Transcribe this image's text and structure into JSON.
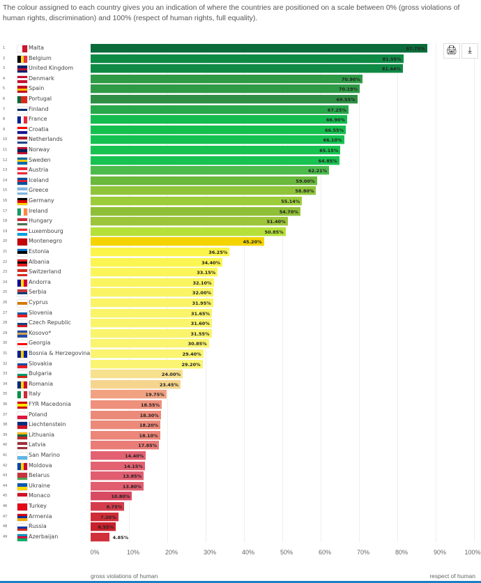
{
  "intro": "The colour assigned to each country gives you an indication of where the countries are positioned on a scale between 0% (gross violations of human rights, discrimination) and 100% (respect of human rights, full equality).",
  "toolbar": {
    "print_icon": "print-icon",
    "download_icon": "download-icon"
  },
  "chart_data": {
    "type": "bar",
    "orientation": "horizontal",
    "xlim": [
      0,
      100
    ],
    "xticks": [
      "0%",
      "10%",
      "20%",
      "30%",
      "40%",
      "50%",
      "60%",
      "70%",
      "80%",
      "90%",
      "100%"
    ],
    "xlabel_left": "gross violations of human",
    "xlabel_right": "respect of human",
    "grid": true,
    "rows": [
      {
        "rank": "1",
        "name": "Malta",
        "value": 87.75,
        "label": "87.75%",
        "color": "#0b6b3a",
        "flag": [
          "v",
          "#ffffff",
          "#cf142b"
        ]
      },
      {
        "rank": "2",
        "name": "Belgium",
        "value": 81.55,
        "label": "81.55%",
        "color": "#0f8a45",
        "flag": [
          "v",
          "#000000",
          "#fdda24",
          "#ef3340"
        ]
      },
      {
        "rank": "3",
        "name": "United Kingdom",
        "value": 81.44,
        "label": "81.44%",
        "color": "#0f8a45",
        "flag": [
          "h",
          "#012169",
          "#c8102e",
          "#012169"
        ]
      },
      {
        "rank": "4",
        "name": "Denmark",
        "value": 70.9,
        "label": "70.90%",
        "color": "#2e9a45",
        "flag": [
          "h",
          "#c8102e",
          "#ffffff",
          "#c8102e"
        ]
      },
      {
        "rank": "5",
        "name": "Spain",
        "value": 70.19,
        "label": "70.19%",
        "color": "#2e9a45",
        "flag": [
          "h",
          "#c60b1e",
          "#ffc400",
          "#c60b1e"
        ]
      },
      {
        "rank": "6",
        "name": "Portugal",
        "value": 69.55,
        "label": "69.55%",
        "color": "#2e8f44",
        "flag": [
          "v",
          "#046a38",
          "#da291c",
          "#da291c"
        ]
      },
      {
        "rank": "7",
        "name": "Finland",
        "value": 67.25,
        "label": "67.25%",
        "color": "#27a84a",
        "flag": [
          "h",
          "#ffffff",
          "#002f6c",
          "#ffffff"
        ]
      },
      {
        "rank": "8",
        "name": "France",
        "value": 66.9,
        "label": "66.90%",
        "color": "#14bb4e",
        "flag": [
          "v",
          "#002395",
          "#ffffff",
          "#ed2939"
        ]
      },
      {
        "rank": "9",
        "name": "Croatia",
        "value": 66.55,
        "label": "66.55%",
        "color": "#14bf4e",
        "flag": [
          "h",
          "#ff0000",
          "#ffffff",
          "#171796"
        ]
      },
      {
        "rank": "10",
        "name": "Netherlands",
        "value": 66.1,
        "label": "66.10%",
        "color": "#14c150",
        "flag": [
          "h",
          "#ae1c28",
          "#ffffff",
          "#21468b"
        ]
      },
      {
        "rank": "11",
        "name": "Norway",
        "value": 65.15,
        "label": "65.15%",
        "color": "#17c250",
        "flag": [
          "h",
          "#ba0c2f",
          "#00205b",
          "#ba0c2f"
        ]
      },
      {
        "rank": "12",
        "name": "Sweden",
        "value": 64.85,
        "label": "64.85%",
        "color": "#17c250",
        "flag": [
          "h",
          "#006aa7",
          "#fecc02",
          "#006aa7"
        ]
      },
      {
        "rank": "13",
        "name": "Austria",
        "value": 62.21,
        "label": "62.21%",
        "color": "#4cbb4c",
        "flag": [
          "h",
          "#ed2939",
          "#ffffff",
          "#ed2939"
        ]
      },
      {
        "rank": "14",
        "name": "Iceland",
        "value": 59.0,
        "label": "59.00%",
        "color": "#6ab83c",
        "flag": [
          "h",
          "#02529c",
          "#dc1e35",
          "#02529c"
        ]
      },
      {
        "rank": "15",
        "name": "Greece",
        "value": 58.8,
        "label": "58.80%",
        "color": "#8fc43a",
        "flag": [
          "h",
          "#7fb6e0",
          "#ffffff",
          "#7fb6e0"
        ]
      },
      {
        "rank": "16",
        "name": "Germany",
        "value": 55.14,
        "label": "55.14%",
        "color": "#9ccc3a",
        "flag": [
          "h",
          "#000000",
          "#dd0000",
          "#ffce00"
        ]
      },
      {
        "rank": "17",
        "name": "Ireland",
        "value": 54.7,
        "label": "54.70%",
        "color": "#8fbf36",
        "flag": [
          "v",
          "#169b62",
          "#ffffff",
          "#ff883e"
        ]
      },
      {
        "rank": "18",
        "name": "Hungary",
        "value": 51.4,
        "label": "51.40%",
        "color": "#9cc53a",
        "flag": [
          "h",
          "#ce2939",
          "#ffffff",
          "#477050"
        ]
      },
      {
        "rank": "19",
        "name": "Luxembourg",
        "value": 50.85,
        "label": "50.85%",
        "color": "#b5e03a",
        "flag": [
          "h",
          "#ed2939",
          "#ffffff",
          "#00a1de"
        ]
      },
      {
        "rank": "20",
        "name": "Montenegro",
        "value": 45.2,
        "label": "45.20%",
        "color": "#f3d400",
        "flag": [
          "h",
          "#c40308",
          "#c40308",
          "#c40308"
        ]
      },
      {
        "rank": "21",
        "name": "Estonia",
        "value": 36.25,
        "label": "36.25%",
        "color": "#fbf54a",
        "flag": [
          "h",
          "#0072ce",
          "#000000",
          "#ffffff"
        ]
      },
      {
        "rank": "22",
        "name": "Albania",
        "value": 34.4,
        "label": "34.40%",
        "color": "#fbf552",
        "flag": [
          "h",
          "#e41e20",
          "#000000",
          "#e41e20"
        ]
      },
      {
        "rank": "23",
        "name": "Switzerland",
        "value": 33.15,
        "label": "33.15%",
        "color": "#fbf55a",
        "flag": [
          "h",
          "#d52b1e",
          "#ffffff",
          "#d52b1e"
        ]
      },
      {
        "rank": "24",
        "name": "Andorra",
        "value": 32.1,
        "label": "32.10%",
        "color": "#faf460",
        "flag": [
          "v",
          "#10069f",
          "#fedf00",
          "#d50032"
        ]
      },
      {
        "rank": "25",
        "name": "Serbia",
        "value": 32.0,
        "label": "32.00%",
        "color": "#faf464",
        "flag": [
          "h",
          "#c6363c",
          "#0c4076",
          "#ffffff"
        ]
      },
      {
        "rank": "26",
        "name": "Cyprus",
        "value": 31.95,
        "label": "31.95%",
        "color": "#faf466",
        "flag": [
          "h",
          "#ffffff",
          "#d57800",
          "#ffffff"
        ]
      },
      {
        "rank": "27",
        "name": "Slovenia",
        "value": 31.65,
        "label": "31.65%",
        "color": "#faf468",
        "flag": [
          "h",
          "#ffffff",
          "#005da4",
          "#ed1c24"
        ]
      },
      {
        "rank": "28",
        "name": "Czech Republic",
        "value": 31.6,
        "label": "31.60%",
        "color": "#faf46a",
        "flag": [
          "h",
          "#ffffff",
          "#11457e",
          "#d7141a"
        ]
      },
      {
        "rank": "29",
        "name": "Kosovo*",
        "value": 31.55,
        "label": "31.55%",
        "color": "#faf46c",
        "flag": [
          "h",
          "#244aa5",
          "#d0a650",
          "#244aa5"
        ]
      },
      {
        "rank": "30",
        "name": "Georgia",
        "value": 30.85,
        "label": "30.85%",
        "color": "#faf46e",
        "flag": [
          "h",
          "#ffffff",
          "#ff0000",
          "#ffffff"
        ]
      },
      {
        "rank": "31",
        "name": "Bosnia & Herzegovina",
        "value": 29.4,
        "label": "29.40%",
        "color": "#faf470",
        "flag": [
          "v",
          "#002395",
          "#fecb00",
          "#002395"
        ]
      },
      {
        "rank": "32",
        "name": "Slovakia",
        "value": 29.2,
        "label": "29.20%",
        "color": "#faf472",
        "flag": [
          "h",
          "#ffffff",
          "#0b4ea2",
          "#ee1c25"
        ]
      },
      {
        "rank": "33",
        "name": "Bulgaria",
        "value": 24.0,
        "label": "24.00%",
        "color": "#f7e08e",
        "flag": [
          "h",
          "#ffffff",
          "#00966e",
          "#d62612"
        ]
      },
      {
        "rank": "34",
        "name": "Romania",
        "value": 23.45,
        "label": "23.45%",
        "color": "#f5d58e",
        "flag": [
          "v",
          "#002b7f",
          "#fcd116",
          "#ce1126"
        ]
      },
      {
        "rank": "35",
        "name": "Italy",
        "value": 19.75,
        "label": "19.75%",
        "color": "#f0a282",
        "flag": [
          "v",
          "#009246",
          "#ffffff",
          "#ce2b37"
        ]
      },
      {
        "rank": "36",
        "name": "FYR Macedonia",
        "value": 18.55,
        "label": "18.55%",
        "color": "#ee907c",
        "flag": [
          "h",
          "#d20000",
          "#ffe600",
          "#d20000"
        ]
      },
      {
        "rank": "37",
        "name": "Poland",
        "value": 18.3,
        "label": "18.30%",
        "color": "#ec8a7a",
        "flag": [
          "h",
          "#ffffff",
          "#dc143c"
        ]
      },
      {
        "rank": "38",
        "name": "Liechtenstein",
        "value": 18.2,
        "label": "18.20%",
        "color": "#ec8a7a",
        "flag": [
          "h",
          "#002b7f",
          "#ce1126"
        ]
      },
      {
        "rank": "39",
        "name": "Lithuania",
        "value": 18.1,
        "label": "18.10%",
        "color": "#eb8679",
        "flag": [
          "h",
          "#fdb913",
          "#006a44",
          "#c1272d"
        ]
      },
      {
        "rank": "40",
        "name": "Latvia",
        "value": 17.85,
        "label": "17.85%",
        "color": "#e97c77",
        "flag": [
          "h",
          "#9e3039",
          "#ffffff",
          "#9e3039"
        ]
      },
      {
        "rank": "41",
        "name": "San Marino",
        "value": 14.4,
        "label": "14.40%",
        "color": "#e26272",
        "flag": [
          "h",
          "#ffffff",
          "#5eb6e4"
        ]
      },
      {
        "rank": "42",
        "name": "Moldova",
        "value": 14.15,
        "label": "14.15%",
        "color": "#e26272",
        "flag": [
          "v",
          "#0046ae",
          "#ffd200",
          "#cc092f"
        ]
      },
      {
        "rank": "43",
        "name": "Belarus",
        "value": 13.85,
        "label": "13.85%",
        "color": "#e05e70",
        "flag": [
          "h",
          "#c8313e",
          "#c8313e",
          "#4aa657"
        ]
      },
      {
        "rank": "44",
        "name": "Ukraine",
        "value": 13.8,
        "label": "13.80%",
        "color": "#e05e70",
        "flag": [
          "h",
          "#0057b7",
          "#ffd700"
        ]
      },
      {
        "rank": "45",
        "name": "Monaco",
        "value": 10.8,
        "label": "10.80%",
        "color": "#d84a62",
        "flag": [
          "h",
          "#ce1126",
          "#ffffff"
        ]
      },
      {
        "rank": "46",
        "name": "Turkey",
        "value": 8.75,
        "label": "8.75%",
        "color": "#d43c4c",
        "flag": [
          "h",
          "#e30a17",
          "#e30a17"
        ]
      },
      {
        "rank": "47",
        "name": "Armenia",
        "value": 7.2,
        "label": "7.20%",
        "color": "#d02c38",
        "flag": [
          "h",
          "#d90012",
          "#0033a0",
          "#f2a800"
        ]
      },
      {
        "rank": "48",
        "name": "Russia",
        "value": 6.55,
        "label": "6.55%",
        "color": "#c8202c",
        "flag": [
          "h",
          "#ffffff",
          "#0039a6",
          "#d52b1e"
        ]
      },
      {
        "rank": "49",
        "name": "Azerbaijan",
        "value": 4.85,
        "label": "4.85%",
        "color": "#d0303a",
        "flag": [
          "h",
          "#0092bc",
          "#e00034",
          "#00af66"
        ]
      }
    ]
  }
}
